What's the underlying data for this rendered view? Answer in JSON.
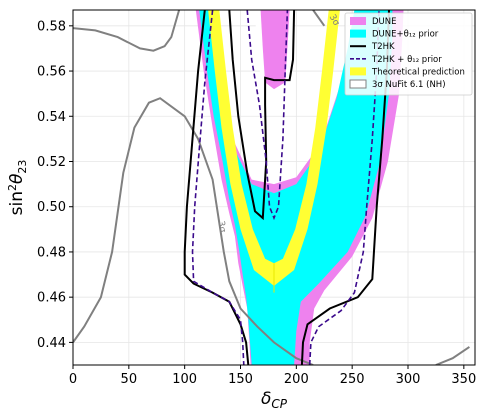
{
  "chart_data": {
    "type": "contour",
    "title": "",
    "xlabel": "δ_CP",
    "ylabel": "sin²θ₂₃",
    "xlim": [
      0,
      360
    ],
    "ylim": [
      0.43,
      0.587
    ],
    "xticks": [
      0,
      50,
      100,
      150,
      200,
      250,
      300,
      350
    ],
    "yticks": [
      0.44,
      0.46,
      0.48,
      0.5,
      0.52,
      0.54,
      0.56,
      0.58
    ],
    "grid": true,
    "legend_position": "top-right",
    "colors": {
      "dune": "#ee82ee",
      "dune_prior": "#00ffff",
      "t2hk": "#000000",
      "t2hk_prior": "#3b0a8c",
      "theory": "#ffff33",
      "nufit": "#808080"
    },
    "legend": [
      {
        "key": "dune",
        "label": "DUNE",
        "style": "patch"
      },
      {
        "key": "dune_prior",
        "label": "DUNE+θ₁₂ prior",
        "style": "patch"
      },
      {
        "key": "t2hk",
        "label": "T2HK",
        "style": "solid"
      },
      {
        "key": "t2hk_prior",
        "label": "T2HK + θ₁₂ prior",
        "style": "dashed"
      },
      {
        "key": "theory",
        "label": "Theoretical prediction",
        "style": "patch"
      },
      {
        "key": "nufit",
        "label": "3σ NuFit 6.1 (NH)",
        "style": "patch-outline"
      }
    ],
    "contour_labels": [
      {
        "text": "3σ",
        "x": 232,
        "y": 0.582,
        "rotation": 60
      },
      {
        "text": "3σ",
        "x": 131,
        "y": 0.491,
        "rotation": 80
      }
    ],
    "series": {
      "dune_outer": [
        [
          110,
          0.587
        ],
        [
          117,
          0.56
        ],
        [
          125,
          0.535
        ],
        [
          133,
          0.512
        ],
        [
          140,
          0.497
        ],
        [
          145,
          0.487
        ],
        [
          148,
          0.475
        ],
        [
          152,
          0.465
        ],
        [
          156,
          0.455
        ],
        [
          158,
          0.44
        ],
        [
          159,
          0.43
        ],
        [
          212,
          0.43
        ],
        [
          212,
          0.44
        ],
        [
          216,
          0.455
        ],
        [
          225,
          0.463
        ],
        [
          250,
          0.478
        ],
        [
          268,
          0.495
        ],
        [
          282,
          0.52
        ],
        [
          292,
          0.55
        ],
        [
          295,
          0.575
        ],
        [
          296,
          0.587
        ],
        [
          254,
          0.587
        ],
        [
          250,
          0.575
        ],
        [
          238,
          0.552
        ],
        [
          222,
          0.528
        ],
        [
          200,
          0.513
        ],
        [
          180,
          0.51
        ],
        [
          160,
          0.512
        ],
        [
          145,
          0.528
        ],
        [
          133,
          0.552
        ],
        [
          128,
          0.587
        ]
      ],
      "dune_inner_top": [
        [
          162,
          0.587
        ],
        [
          166,
          0.57
        ],
        [
          168,
          0.555
        ],
        [
          180,
          0.548
        ],
        [
          193,
          0.555
        ],
        [
          196,
          0.57
        ],
        [
          200,
          0.587
        ]
      ],
      "dune_prior": [
        [
          113,
          0.587
        ],
        [
          120,
          0.56
        ],
        [
          126,
          0.54
        ],
        [
          134,
          0.52
        ],
        [
          140,
          0.503
        ],
        [
          145,
          0.492
        ],
        [
          149,
          0.48
        ],
        [
          152,
          0.47
        ],
        [
          155,
          0.46
        ],
        [
          157,
          0.45
        ],
        [
          160,
          0.43
        ],
        [
          198,
          0.43
        ],
        [
          200,
          0.445
        ],
        [
          204,
          0.458
        ],
        [
          220,
          0.466
        ],
        [
          246,
          0.48
        ],
        [
          262,
          0.496
        ],
        [
          275,
          0.52
        ],
        [
          283,
          0.55
        ],
        [
          286,
          0.575
        ],
        [
          286,
          0.587
        ],
        [
          252,
          0.587
        ],
        [
          246,
          0.57
        ],
        [
          236,
          0.548
        ],
        [
          220,
          0.524
        ],
        [
          200,
          0.51
        ],
        [
          180,
          0.506
        ],
        [
          160,
          0.51
        ],
        [
          146,
          0.524
        ],
        [
          134,
          0.548
        ],
        [
          126,
          0.587
        ]
      ],
      "dune_prior_hole": [
        [
          168,
          0.587
        ],
        [
          170,
          0.57
        ],
        [
          172,
          0.555
        ],
        [
          180,
          0.552
        ],
        [
          190,
          0.555
        ],
        [
          192,
          0.57
        ],
        [
          194,
          0.587
        ]
      ],
      "theory": [
        [
          121,
          0.587
        ],
        [
          127,
          0.56
        ],
        [
          133,
          0.535
        ],
        [
          141,
          0.51
        ],
        [
          150,
          0.49
        ],
        [
          162,
          0.472
        ],
        [
          180,
          0.465
        ],
        [
          198,
          0.472
        ],
        [
          210,
          0.49
        ],
        [
          219,
          0.51
        ],
        [
          227,
          0.535
        ],
        [
          233,
          0.56
        ],
        [
          239,
          0.587
        ],
        [
          229,
          0.587
        ],
        [
          223,
          0.56
        ],
        [
          217,
          0.535
        ],
        [
          209,
          0.51
        ],
        [
          199,
          0.49
        ],
        [
          188,
          0.477
        ],
        [
          180,
          0.475
        ],
        [
          172,
          0.477
        ],
        [
          161,
          0.49
        ],
        [
          151,
          0.51
        ],
        [
          143,
          0.535
        ],
        [
          137,
          0.56
        ],
        [
          131,
          0.587
        ]
      ],
      "theory_line": [
        [
          180,
          0.475
        ],
        [
          180,
          0.462
        ]
      ],
      "t2hk": [
        [
          [
            140,
            0.587
          ],
          [
            143,
            0.565
          ],
          [
            148,
            0.54
          ],
          [
            156,
            0.515
          ],
          [
            163,
            0.498
          ],
          [
            170,
            0.495
          ],
          [
            173,
            0.52
          ],
          [
            172,
            0.545
          ],
          [
            172,
            0.557
          ],
          [
            180,
            0.556
          ],
          [
            194,
            0.556
          ],
          [
            197,
            0.565
          ],
          [
            198,
            0.587
          ]
        ],
        [
          [
            118,
            0.587
          ],
          [
            112,
            0.56
          ],
          [
            107,
            0.53
          ],
          [
            102,
            0.5
          ],
          [
            100,
            0.48
          ],
          [
            100,
            0.47
          ],
          [
            108,
            0.466
          ],
          [
            125,
            0.462
          ],
          [
            140,
            0.458
          ],
          [
            150,
            0.448
          ],
          [
            155,
            0.44
          ],
          [
            157,
            0.43
          ]
        ],
        [
          [
            205,
            0.43
          ],
          [
            206,
            0.44
          ],
          [
            210,
            0.448
          ],
          [
            230,
            0.455
          ],
          [
            255,
            0.46
          ],
          [
            268,
            0.468
          ],
          [
            272,
            0.5
          ],
          [
            277,
            0.53
          ],
          [
            281,
            0.56
          ],
          [
            283,
            0.587
          ]
        ]
      ],
      "t2hk_prior": [
        [
          [
            156,
            0.587
          ],
          [
            160,
            0.565
          ],
          [
            167,
            0.545
          ],
          [
            173,
            0.52
          ],
          [
            176,
            0.5
          ],
          [
            180,
            0.495
          ],
          [
            184,
            0.5
          ],
          [
            188,
            0.53
          ],
          [
            190,
            0.56
          ],
          [
            192,
            0.587
          ]
        ],
        [
          [
            125,
            0.587
          ],
          [
            118,
            0.555
          ],
          [
            113,
            0.525
          ],
          [
            109,
            0.5
          ],
          [
            107,
            0.48
          ],
          [
            108,
            0.467
          ],
          [
            125,
            0.462
          ],
          [
            140,
            0.458
          ],
          [
            150,
            0.45
          ],
          [
            152,
            0.44
          ],
          [
            153,
            0.43
          ]
        ],
        [
          [
            212,
            0.43
          ],
          [
            213,
            0.44
          ],
          [
            220,
            0.447
          ],
          [
            240,
            0.454
          ],
          [
            252,
            0.462
          ],
          [
            260,
            0.48
          ],
          [
            263,
            0.5
          ],
          [
            268,
            0.53
          ],
          [
            272,
            0.56
          ],
          [
            274,
            0.587
          ]
        ]
      ],
      "nufit": [
        [
          [
            0,
            0.579
          ],
          [
            20,
            0.578
          ],
          [
            40,
            0.575
          ],
          [
            60,
            0.57
          ],
          [
            72,
            0.569
          ],
          [
            82,
            0.571
          ],
          [
            88,
            0.575
          ],
          [
            95,
            0.587
          ]
        ],
        [
          [
            0,
            0.44
          ],
          [
            10,
            0.447
          ],
          [
            25,
            0.46
          ],
          [
            35,
            0.48
          ],
          [
            45,
            0.515
          ],
          [
            55,
            0.535
          ],
          [
            68,
            0.546
          ],
          [
            78,
            0.548
          ],
          [
            100,
            0.54
          ],
          [
            112,
            0.53
          ],
          [
            125,
            0.512
          ],
          [
            135,
            0.48
          ],
          [
            140,
            0.467
          ],
          [
            150,
            0.455
          ],
          [
            165,
            0.447
          ],
          [
            180,
            0.44
          ],
          [
            200,
            0.433
          ],
          [
            215,
            0.43
          ]
        ],
        [
          [
            325,
            0.43
          ],
          [
            340,
            0.433
          ],
          [
            355,
            0.438
          ]
        ],
        [
          [
            215,
            0.587
          ],
          [
            225,
            0.58
          ]
        ]
      ]
    }
  }
}
